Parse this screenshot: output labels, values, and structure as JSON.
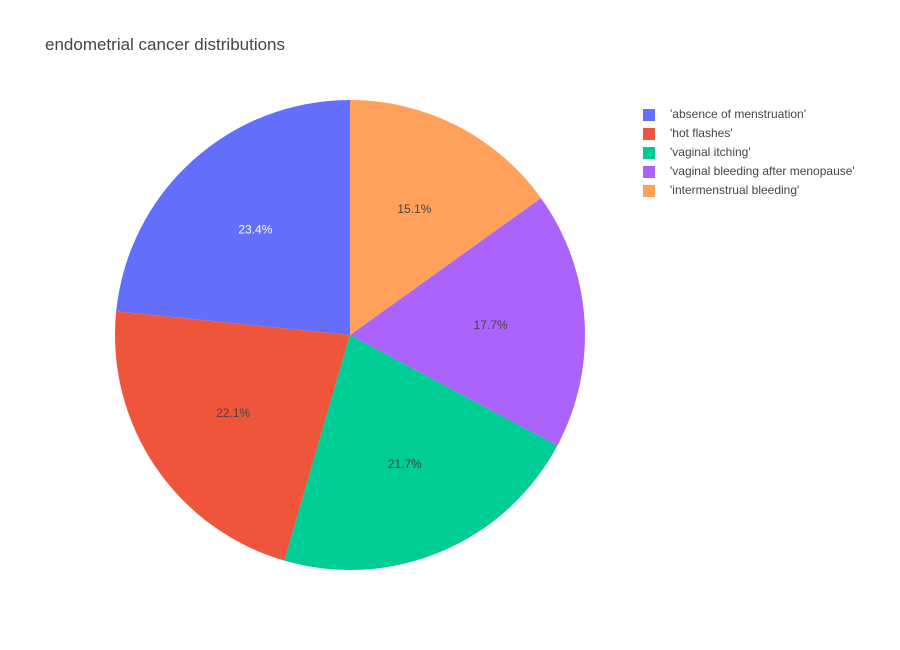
{
  "chart_data": {
    "type": "pie",
    "title": "endometrial cancer distributions",
    "sort": "descending",
    "direction": "clockwise",
    "start": "12 o'clock",
    "legend_position": "top-right",
    "slices": [
      {
        "label": "'absence of menstruation'",
        "percent": 23.4,
        "text": "23.4%",
        "color": "#636efa",
        "text_color": "#ffffff"
      },
      {
        "label": "'hot flashes'",
        "percent": 22.1,
        "text": "22.1%",
        "color": "#ef553b",
        "text_color": "#444444"
      },
      {
        "label": "'vaginal itching'",
        "percent": 21.7,
        "text": "21.7%",
        "color": "#00cc96",
        "text_color": "#444444"
      },
      {
        "label": "'vaginal bleeding after menopause'",
        "percent": 17.7,
        "text": "17.7%",
        "color": "#ab63fa",
        "text_color": "#444444"
      },
      {
        "label": "'intermenstrual bleeding'",
        "percent": 15.1,
        "text": "15.1%",
        "color": "#ffa15a",
        "text_color": "#444444"
      }
    ]
  }
}
